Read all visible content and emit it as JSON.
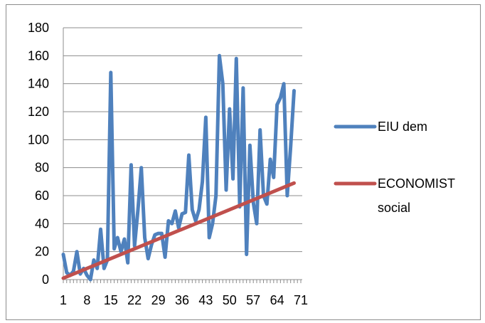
{
  "chart_data": {
    "type": "line",
    "title": "",
    "xlabel": "",
    "ylabel": "",
    "ylim": [
      0,
      180
    ],
    "yticks": [
      0,
      20,
      40,
      60,
      80,
      100,
      120,
      140,
      160,
      180
    ],
    "xlim": [
      1,
      71
    ],
    "xtick_labels": [
      "1",
      "8",
      "15",
      "22",
      "29",
      "36",
      "43",
      "50",
      "57",
      "64",
      "71"
    ],
    "grid": "horizontal",
    "legend_position": "right",
    "series": [
      {
        "name": "EIU dem",
        "color": "#4f81bd",
        "x": [
          1,
          2,
          3,
          4,
          5,
          6,
          7,
          8,
          9,
          10,
          11,
          12,
          13,
          14,
          15,
          16,
          17,
          18,
          19,
          20,
          21,
          22,
          23,
          24,
          25,
          26,
          27,
          28,
          29,
          30,
          31,
          32,
          33,
          34,
          35,
          36,
          37,
          38,
          39,
          40,
          41,
          42,
          43,
          44,
          45,
          46,
          47,
          48,
          49,
          50,
          51,
          52,
          53,
          54,
          55,
          56,
          57,
          58,
          59,
          60,
          61,
          62,
          63,
          64,
          65,
          66,
          67,
          68,
          69
        ],
        "values": [
          18,
          5,
          3,
          6,
          20,
          4,
          8,
          3,
          0,
          14,
          8,
          36,
          8,
          14,
          148,
          22,
          30,
          20,
          29,
          12,
          82,
          24,
          50,
          80,
          30,
          15,
          25,
          32,
          33,
          33,
          16,
          42,
          40,
          49,
          37,
          47,
          48,
          89,
          50,
          42,
          50,
          70,
          116,
          30,
          40,
          60,
          160,
          140,
          64,
          122,
          72,
          158,
          52,
          137,
          18,
          96,
          55,
          40,
          107,
          60,
          54,
          86,
          73,
          125,
          130,
          140,
          60,
          95,
          135
        ]
      },
      {
        "name": "ECONOMIST social",
        "color": "#c0504d",
        "x": [
          1,
          69
        ],
        "values": [
          1,
          69
        ]
      }
    ]
  }
}
